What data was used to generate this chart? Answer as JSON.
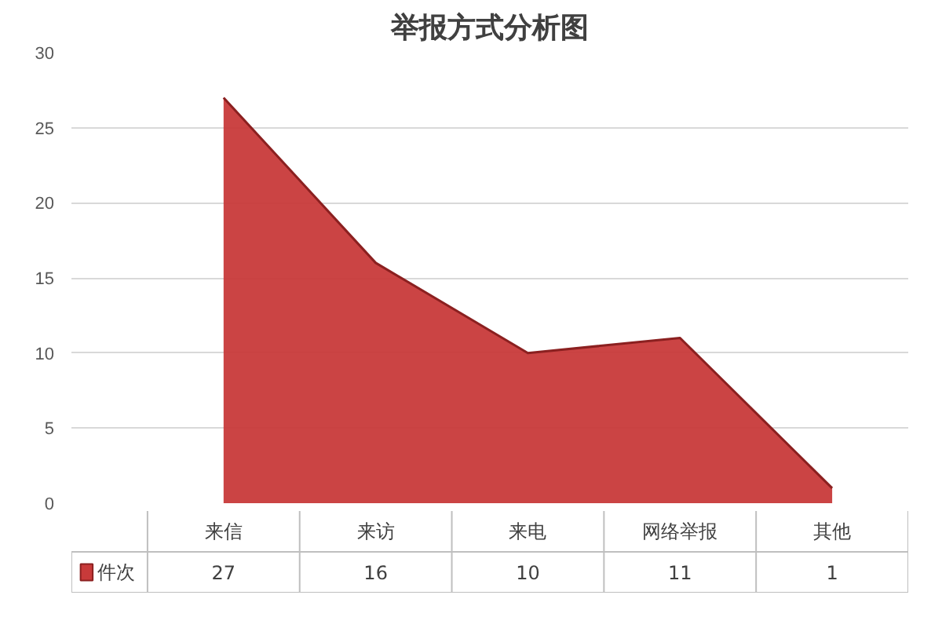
{
  "chart_data": {
    "type": "area",
    "title": "举报方式分析图",
    "categories": [
      "来信",
      "来访",
      "来电",
      "网络举报",
      "其他"
    ],
    "series": [
      {
        "name": "件次",
        "color": "#c83a3a",
        "values": [
          27,
          16,
          10,
          11,
          1
        ]
      }
    ],
    "ylim": [
      0,
      30
    ],
    "yticks": [
      0,
      5,
      10,
      15,
      20,
      25,
      30
    ],
    "grid": "y",
    "legend": "bottom left",
    "data_labels": true
  }
}
